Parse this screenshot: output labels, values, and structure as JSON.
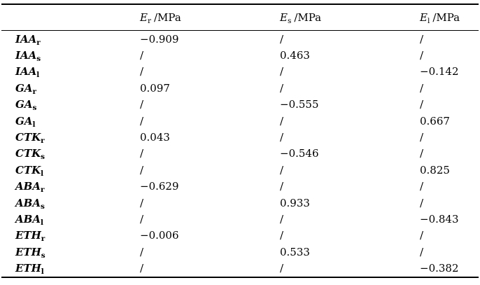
{
  "table": {
    "header": {
      "columns": [
        {
          "base": "E",
          "sub": "r",
          "unit": "/MPa"
        },
        {
          "base": "E",
          "sub": "s",
          "unit": "/MPa"
        },
        {
          "base": "E",
          "sub": "l",
          "unit": "/MPa"
        }
      ]
    },
    "rows": [
      {
        "base": "IAA",
        "sub": "r",
        "values": [
          "−0.909",
          "/",
          "/"
        ]
      },
      {
        "base": "IAA",
        "sub": "s",
        "values": [
          "/",
          "0.463",
          "/"
        ]
      },
      {
        "base": "IAA",
        "sub": "l",
        "values": [
          "/",
          "/",
          "−0.142"
        ]
      },
      {
        "base": "GA",
        "sub": "r",
        "values": [
          "0.097",
          "/",
          "/"
        ]
      },
      {
        "base": "GA",
        "sub": "s",
        "values": [
          "/",
          "−0.555",
          "/"
        ]
      },
      {
        "base": "GA",
        "sub": "l",
        "values": [
          "/",
          "/",
          "0.667"
        ]
      },
      {
        "base": "CTK",
        "sub": "r",
        "values": [
          "0.043",
          "/",
          "/"
        ]
      },
      {
        "base": "CTK",
        "sub": "s",
        "values": [
          "/",
          "−0.546",
          "/"
        ]
      },
      {
        "base": "CTK",
        "sub": "l",
        "values": [
          "/",
          "/",
          "0.825"
        ]
      },
      {
        "base": "ABA",
        "sub": "r",
        "values": [
          "−0.629",
          "/",
          "/"
        ]
      },
      {
        "base": "ABA",
        "sub": "s",
        "values": [
          "/",
          "0.933",
          "/"
        ]
      },
      {
        "base": "ABA",
        "sub": "l",
        "values": [
          "/",
          "/",
          "−0.843"
        ]
      },
      {
        "base": "ETH",
        "sub": "r",
        "values": [
          "−0.006",
          "/",
          "/"
        ]
      },
      {
        "base": "ETH",
        "sub": "s",
        "values": [
          "/",
          "0.533",
          "/"
        ]
      },
      {
        "base": "ETH",
        "sub": "l",
        "values": [
          "/",
          "/",
          "−0.382"
        ]
      }
    ]
  }
}
